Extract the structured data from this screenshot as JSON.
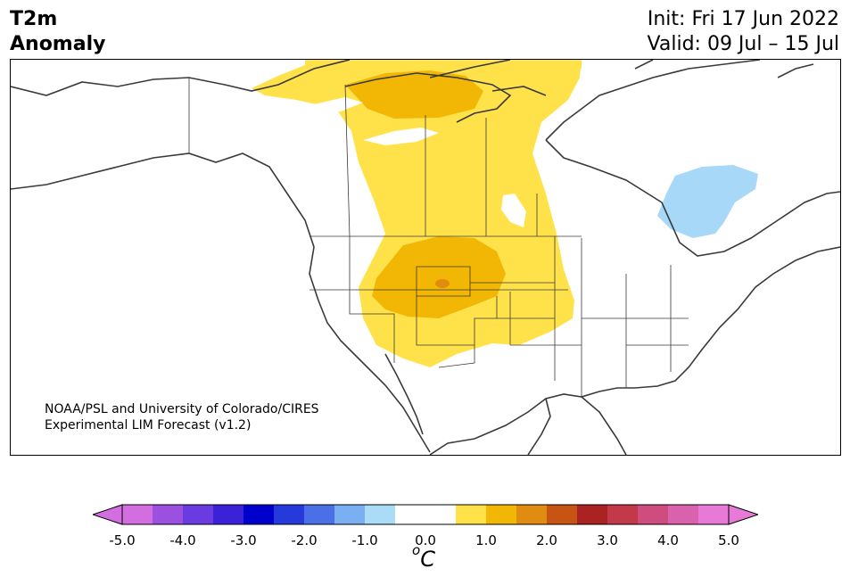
{
  "title": {
    "left_line1": "T2m",
    "left_line2": "Anomaly",
    "init": "Init: Fri 17 Jun 2022",
    "valid": "Valid: 09 Jul – 15 Jul"
  },
  "credit": {
    "line1": "NOAA/PSL and University of Colorado/CIRES",
    "line2": "Experimental LIM Forecast (v1.2)"
  },
  "map": {
    "region": "North America",
    "anomaly_levels": {
      "light_warm": {
        "range": "0.5 to 1.0",
        "color": "#ffe24a"
      },
      "moderate_warm": {
        "range": "1.0 to 1.5",
        "color": "#f2b705"
      },
      "strong_warm": {
        "range": "1.5 to 2.0",
        "color": "#e08c10"
      },
      "light_cool": {
        "range": "-1.0 to -0.5",
        "color": "#a8d8f8"
      }
    }
  },
  "colorbar": {
    "unit_base": "C",
    "unit_sup": "o",
    "colors": [
      "#d36ee0",
      "#9b50df",
      "#6a3be0",
      "#3b22d8",
      "#0000cd",
      "#2639db",
      "#4a6fe6",
      "#7ab0f2",
      "#aadcf8",
      "#ffffff",
      "#ffffff",
      "#ffe24a",
      "#f2b705",
      "#e08c10",
      "#c85414",
      "#aa2222",
      "#c2394a",
      "#cf4c7e",
      "#da62ad",
      "#e77ad7"
    ],
    "left_arrow_color": "#d36ee0",
    "right_arrow_color": "#e77ad7",
    "tick_labels": [
      "-5.0",
      "-4.0",
      "-3.0",
      "-2.0",
      "-1.0",
      "0.0",
      "1.0",
      "2.0",
      "3.0",
      "4.0",
      "5.0"
    ]
  }
}
